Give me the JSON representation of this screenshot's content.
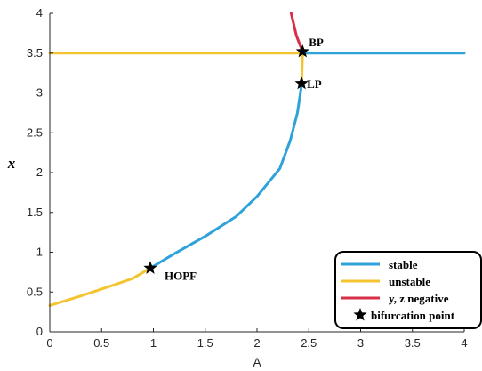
{
  "chart_data": {
    "type": "line",
    "xlabel": "A",
    "ylabel": "x",
    "xlim": [
      0,
      4
    ],
    "ylim": [
      0,
      4
    ],
    "x_ticks": [
      "0",
      "0.5",
      "1",
      "1.5",
      "2",
      "2.5",
      "3",
      "3.5",
      "4"
    ],
    "y_ticks": [
      "0",
      "0.5",
      "1",
      "1.5",
      "2",
      "2.5",
      "3",
      "3.5",
      "4"
    ],
    "grid": false,
    "legend_position": "bottom-right",
    "legend": [
      {
        "label": "stable",
        "color": "#2fa3d9",
        "marker": "line"
      },
      {
        "label": "unstable",
        "color": "#f4c430",
        "marker": "line"
      },
      {
        "label": "y, z negative",
        "color": "#d9304a",
        "marker": "line"
      },
      {
        "label": "bifurcation point",
        "color": "#000000",
        "marker": "star"
      }
    ],
    "series": [
      {
        "category": "unstable",
        "color": "#f4c430",
        "points": [
          [
            0.0,
            0.33
          ],
          [
            0.3,
            0.45
          ],
          [
            0.6,
            0.58
          ],
          [
            0.8,
            0.67
          ],
          [
            0.97,
            0.8
          ]
        ]
      },
      {
        "category": "stable",
        "color": "#2fa3d9",
        "points": [
          [
            0.97,
            0.8
          ],
          [
            1.2,
            0.98
          ],
          [
            1.5,
            1.2
          ],
          [
            1.8,
            1.45
          ],
          [
            2.0,
            1.7
          ],
          [
            2.22,
            2.05
          ],
          [
            2.32,
            2.4
          ],
          [
            2.39,
            2.75
          ],
          [
            2.43,
            3.1
          ]
        ]
      },
      {
        "category": "unstable",
        "color": "#f4c430",
        "points": [
          [
            2.43,
            3.1
          ],
          [
            2.44,
            3.52
          ]
        ]
      },
      {
        "category": "y, z negative",
        "color": "#d9304a",
        "points": [
          [
            2.44,
            3.52
          ],
          [
            2.38,
            3.72
          ],
          [
            2.33,
            4.0
          ]
        ]
      },
      {
        "category": "unstable",
        "color": "#f4c430",
        "points": [
          [
            0.0,
            3.5
          ],
          [
            2.44,
            3.5
          ]
        ]
      },
      {
        "category": "stable",
        "color": "#2fa3d9",
        "points": [
          [
            2.44,
            3.5
          ],
          [
            4.0,
            3.5
          ]
        ]
      }
    ],
    "bifurcation_points": [
      {
        "label": "HOPF",
        "x": 0.97,
        "y": 0.8
      },
      {
        "label": "LP",
        "x": 2.43,
        "y": 3.12
      },
      {
        "label": "BP",
        "x": 2.44,
        "y": 3.52
      }
    ]
  }
}
